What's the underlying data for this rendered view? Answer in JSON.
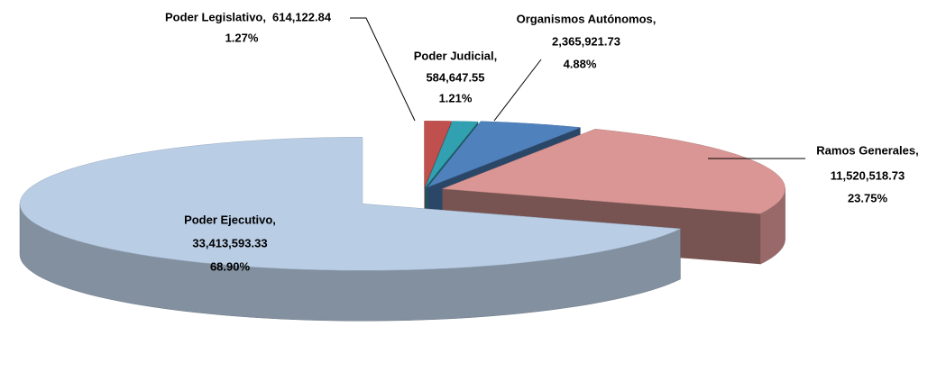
{
  "chart_data": {
    "type": "pie",
    "categories": [
      "Poder Legislativo,",
      "Poder Judicial,",
      "Organismos  Autónomos,",
      "Ramos Generales,",
      "Poder Ejecutivo,"
    ],
    "values": [
      614122.84,
      584647.55,
      2365921.73,
      11520518.73,
      33413593.33
    ],
    "value_labels": [
      "614,122.84",
      "584,647.55",
      "2,365,921.73",
      "11,520,518.73",
      "33,413,593.33"
    ],
    "percents": [
      1.27,
      1.21,
      4.88,
      23.75,
      68.9
    ],
    "percent_labels": [
      "1.27%",
      "1.21%",
      "4.88%",
      "23.75%",
      "68.90%"
    ],
    "colors": [
      "#c0504d",
      "#31a0b0",
      "#4f81bd",
      "#d99694",
      "#b9cde5"
    ]
  }
}
